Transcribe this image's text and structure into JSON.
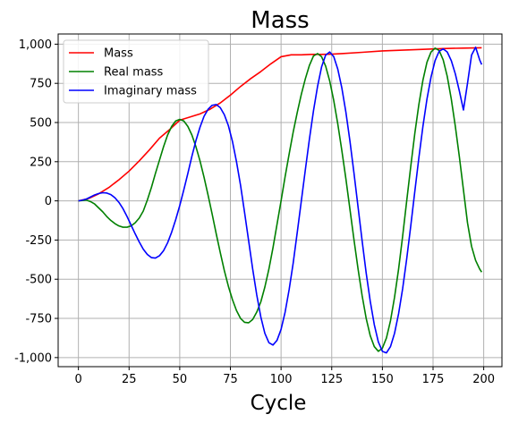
{
  "chart_data": {
    "type": "line",
    "title": "Mass",
    "xlabel": "Cycle",
    "ylabel": "",
    "xlim": [
      -10,
      209
    ],
    "ylim": [
      -1058,
      1065
    ],
    "xticks": [
      0,
      25,
      50,
      75,
      100,
      125,
      150,
      175,
      200
    ],
    "xtick_labels": [
      "0",
      "25",
      "50",
      "75",
      "100",
      "125",
      "150",
      "175",
      "200"
    ],
    "yticks": [
      -1000,
      -750,
      -500,
      -250,
      0,
      250,
      500,
      750,
      1000
    ],
    "ytick_labels": [
      "-1,000",
      "-750",
      "-500",
      "-250",
      "0",
      "250",
      "500",
      "750",
      "1,000"
    ],
    "grid": true,
    "legend_position": "top-left",
    "colors": {
      "mass": "#ff0000",
      "real": "#008000",
      "imag": "#0000ff",
      "grid": "#b0b0b0"
    },
    "series": [
      {
        "name": "Mass",
        "key": "mass",
        "color": "#ff0000",
        "x": [
          0,
          5,
          10,
          15,
          20,
          25,
          30,
          35,
          40,
          45,
          50,
          55,
          60,
          65,
          70,
          75,
          80,
          85,
          90,
          95,
          100,
          105,
          110,
          115,
          120,
          125,
          130,
          140,
          150,
          160,
          170,
          180,
          190,
          199
        ],
        "y": [
          0,
          15,
          45,
          85,
          135,
          190,
          255,
          325,
          400,
          455,
          515,
          535,
          555,
          585,
          625,
          675,
          730,
          780,
          825,
          875,
          920,
          932,
          932,
          935,
          935,
          936,
          940,
          948,
          957,
          962,
          967,
          972,
          975,
          977
        ]
      },
      {
        "name": "Real mass",
        "key": "real",
        "color": "#008000",
        "x": [
          0,
          2,
          4,
          6,
          8,
          10,
          12,
          14,
          16,
          18,
          20,
          22,
          24,
          26,
          28,
          30,
          32,
          34,
          36,
          38,
          40,
          42,
          44,
          46,
          48,
          50,
          52,
          54,
          56,
          58,
          60,
          62,
          64,
          66,
          68,
          70,
          72,
          74,
          76,
          78,
          80,
          82,
          84,
          86,
          88,
          90,
          92,
          94,
          96,
          98,
          100,
          102,
          104,
          106,
          108,
          110,
          112,
          114,
          116,
          118,
          120,
          122,
          124,
          126,
          128,
          130,
          132,
          134,
          136,
          138,
          140,
          142,
          144,
          146,
          148,
          150,
          152,
          154,
          156,
          158,
          160,
          162,
          164,
          166,
          168,
          170,
          172,
          174,
          176,
          178,
          180,
          182,
          184,
          186,
          188,
          190,
          192,
          194,
          196,
          198,
          199
        ],
        "y": [
          0,
          2,
          5,
          -5,
          -20,
          -45,
          -70,
          -100,
          -125,
          -145,
          -160,
          -168,
          -168,
          -160,
          -140,
          -110,
          -65,
          5,
          85,
          175,
          260,
          345,
          420,
          475,
          510,
          520,
          510,
          475,
          420,
          345,
          255,
          150,
          35,
          -85,
          -210,
          -330,
          -445,
          -545,
          -630,
          -700,
          -750,
          -775,
          -778,
          -757,
          -710,
          -645,
          -550,
          -435,
          -300,
          -150,
          0,
          155,
          300,
          440,
          565,
          680,
          780,
          865,
          925,
          940,
          920,
          860,
          765,
          640,
          490,
          320,
          140,
          -55,
          -250,
          -435,
          -605,
          -750,
          -860,
          -930,
          -960,
          -940,
          -875,
          -765,
          -615,
          -435,
          -225,
          0,
          220,
          430,
          615,
          770,
          885,
          950,
          975,
          960,
          900,
          795,
          650,
          475,
          280,
          70,
          -140,
          -290,
          -380,
          -435,
          -455
        ]
      },
      {
        "name": "Imaginary mass",
        "key": "imag",
        "color": "#0000ff",
        "x": [
          0,
          2,
          4,
          6,
          8,
          10,
          12,
          14,
          16,
          18,
          20,
          22,
          24,
          26,
          28,
          30,
          32,
          34,
          36,
          38,
          40,
          42,
          44,
          46,
          48,
          50,
          52,
          54,
          56,
          58,
          60,
          62,
          64,
          66,
          68,
          70,
          72,
          74,
          76,
          78,
          80,
          82,
          84,
          86,
          88,
          90,
          92,
          94,
          96,
          98,
          100,
          102,
          104,
          106,
          108,
          110,
          112,
          114,
          116,
          118,
          120,
          122,
          124,
          126,
          128,
          130,
          132,
          134,
          136,
          138,
          140,
          142,
          144,
          146,
          148,
          150,
          152,
          154,
          156,
          158,
          160,
          162,
          164,
          166,
          168,
          170,
          172,
          174,
          176,
          178,
          180,
          182,
          184,
          186,
          188,
          190,
          192,
          194,
          196,
          198,
          199
        ],
        "y": [
          0,
          5,
          12,
          25,
          38,
          47,
          52,
          50,
          40,
          20,
          -10,
          -50,
          -100,
          -155,
          -210,
          -262,
          -308,
          -342,
          -362,
          -365,
          -350,
          -318,
          -268,
          -200,
          -120,
          -30,
          70,
          175,
          285,
          385,
          470,
          540,
          585,
          610,
          615,
          595,
          550,
          480,
          380,
          250,
          100,
          -75,
          -255,
          -435,
          -600,
          -740,
          -845,
          -905,
          -920,
          -890,
          -820,
          -710,
          -565,
          -395,
          -200,
          0,
          200,
          395,
          575,
          730,
          855,
          930,
          950,
          920,
          840,
          720,
          565,
          380,
          175,
          -40,
          -255,
          -460,
          -640,
          -790,
          -900,
          -960,
          -970,
          -930,
          -845,
          -720,
          -560,
          -370,
          -160,
          60,
          275,
          475,
          650,
          790,
          895,
          955,
          970,
          950,
          895,
          810,
          700,
          580,
          750,
          930,
          980,
          900,
          870
        ]
      }
    ]
  }
}
